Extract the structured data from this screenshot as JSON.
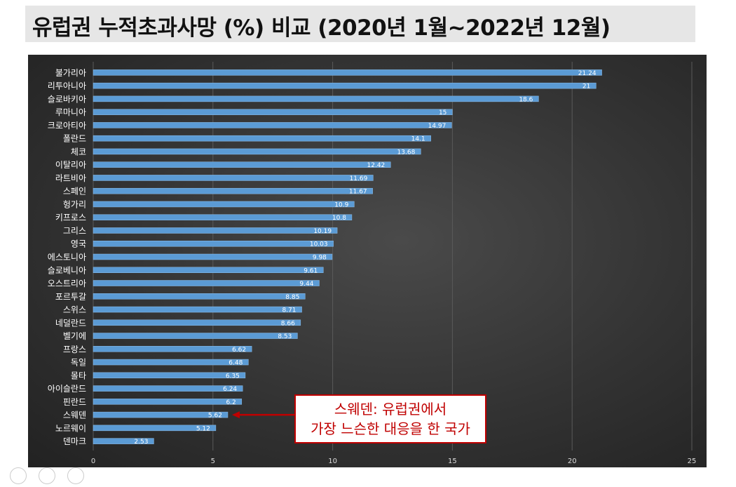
{
  "header": {
    "title": "유럽권 누적초과사망 (%) 비교 (2020년 1월~2022년 12월)"
  },
  "annotation": {
    "line1": "스웨덴: 유럽권에서",
    "line2": "가장 느슨한 대응을 한 국가",
    "color": "#c00000",
    "target_category": "스웨덴"
  },
  "colors": {
    "bar": "#5b9bd5",
    "label": "#ffffff",
    "axis_text": "#dddddd",
    "grid": "#5a5a5a"
  },
  "chart_data": {
    "type": "bar",
    "orientation": "horizontal",
    "categories": [
      "불가리아",
      "리투아니아",
      "슬로바키아",
      "루마니아",
      "크로아티아",
      "폴란드",
      "체코",
      "이탈리아",
      "라트비아",
      "스페인",
      "헝가리",
      "키프로스",
      "그리스",
      "영국",
      "에스토니아",
      "슬로베니아",
      "오스트리아",
      "포르투갈",
      "스위스",
      "네덜란드",
      "벨기에",
      "프랑스",
      "독일",
      "몰타",
      "아이슬란드",
      "핀란드",
      "스웨덴",
      "노르웨이",
      "덴마크"
    ],
    "values": [
      21.24,
      21,
      18.6,
      15,
      14.97,
      14.1,
      13.68,
      12.42,
      11.69,
      11.67,
      10.9,
      10.8,
      10.19,
      10.03,
      9.98,
      9.61,
      9.44,
      8.85,
      8.71,
      8.66,
      8.53,
      6.62,
      6.48,
      6.35,
      6.24,
      6.2,
      5.62,
      5.12,
      2.53
    ],
    "value_labels": [
      "21.24",
      "21",
      "18.6",
      "15",
      "14.97",
      "14.1",
      "13.68",
      "12.42",
      "11.69",
      "11.67",
      "10.9",
      "10.8",
      "10.19",
      "10.03",
      "9.98",
      "9.61",
      "9.44",
      "8.85",
      "8.71",
      "8.66",
      "8.53",
      "6.62",
      "6.48",
      "6.35",
      "6.24",
      "6.2",
      "5.62",
      "5.12",
      "2.53"
    ],
    "xlim": [
      0,
      25
    ],
    "xticks": [
      0,
      5,
      10,
      15,
      20,
      25
    ],
    "grid": true,
    "title": "",
    "xlabel": "",
    "ylabel": ""
  }
}
